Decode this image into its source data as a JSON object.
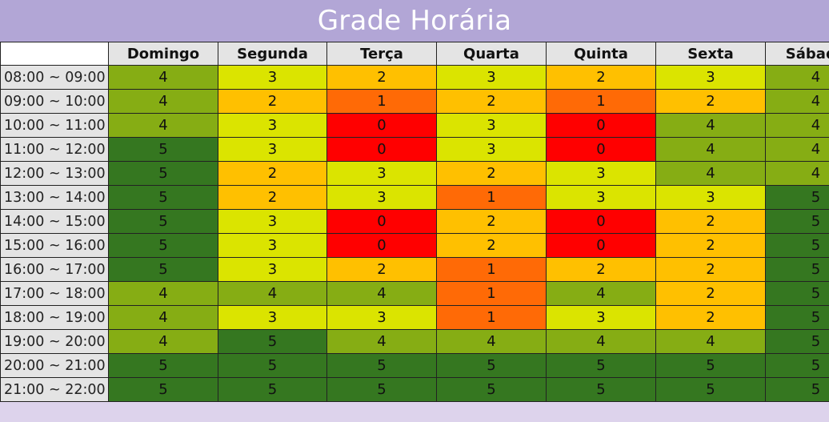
{
  "title": "Grade Horária",
  "colors": {
    "level_0": "#ff0000",
    "level_1": "#ff6a06",
    "level_2": "#ffc000",
    "level_3": "#dbe400",
    "level_4": "#86ad14",
    "level_5": "#357720",
    "title_bg": "#b2a6d6",
    "page_bg": "#ddd3ec",
    "header_bg": "#e4e4e4"
  },
  "days": [
    "Domingo",
    "Segunda",
    "Terça",
    "Quarta",
    "Quinta",
    "Sexta",
    "Sábado"
  ],
  "rows": [
    {
      "time": "08:00 ~ 09:00",
      "values": [
        4,
        3,
        2,
        3,
        2,
        3,
        4
      ]
    },
    {
      "time": "09:00 ~ 10:00",
      "values": [
        4,
        2,
        1,
        2,
        1,
        2,
        4
      ]
    },
    {
      "time": "10:00 ~ 11:00",
      "values": [
        4,
        3,
        0,
        3,
        0,
        4,
        4
      ]
    },
    {
      "time": "11:00 ~ 12:00",
      "values": [
        5,
        3,
        0,
        3,
        0,
        4,
        4
      ]
    },
    {
      "time": "12:00 ~ 13:00",
      "values": [
        5,
        2,
        3,
        2,
        3,
        4,
        4
      ]
    },
    {
      "time": "13:00 ~ 14:00",
      "values": [
        5,
        2,
        3,
        1,
        3,
        3,
        5
      ]
    },
    {
      "time": "14:00 ~ 15:00",
      "values": [
        5,
        3,
        0,
        2,
        0,
        2,
        5
      ]
    },
    {
      "time": "15:00 ~ 16:00",
      "values": [
        5,
        3,
        0,
        2,
        0,
        2,
        5
      ]
    },
    {
      "time": "16:00 ~ 17:00",
      "values": [
        5,
        3,
        2,
        1,
        2,
        2,
        5
      ]
    },
    {
      "time": "17:00 ~ 18:00",
      "values": [
        4,
        4,
        4,
        1,
        4,
        2,
        5
      ]
    },
    {
      "time": "18:00 ~ 19:00",
      "values": [
        4,
        3,
        3,
        1,
        3,
        2,
        5
      ]
    },
    {
      "time": "19:00 ~ 20:00",
      "values": [
        4,
        5,
        4,
        4,
        4,
        4,
        5
      ]
    },
    {
      "time": "20:00 ~ 21:00",
      "values": [
        5,
        5,
        5,
        5,
        5,
        5,
        5
      ]
    },
    {
      "time": "21:00 ~ 22:00",
      "values": [
        5,
        5,
        5,
        5,
        5,
        5,
        5
      ]
    }
  ]
}
